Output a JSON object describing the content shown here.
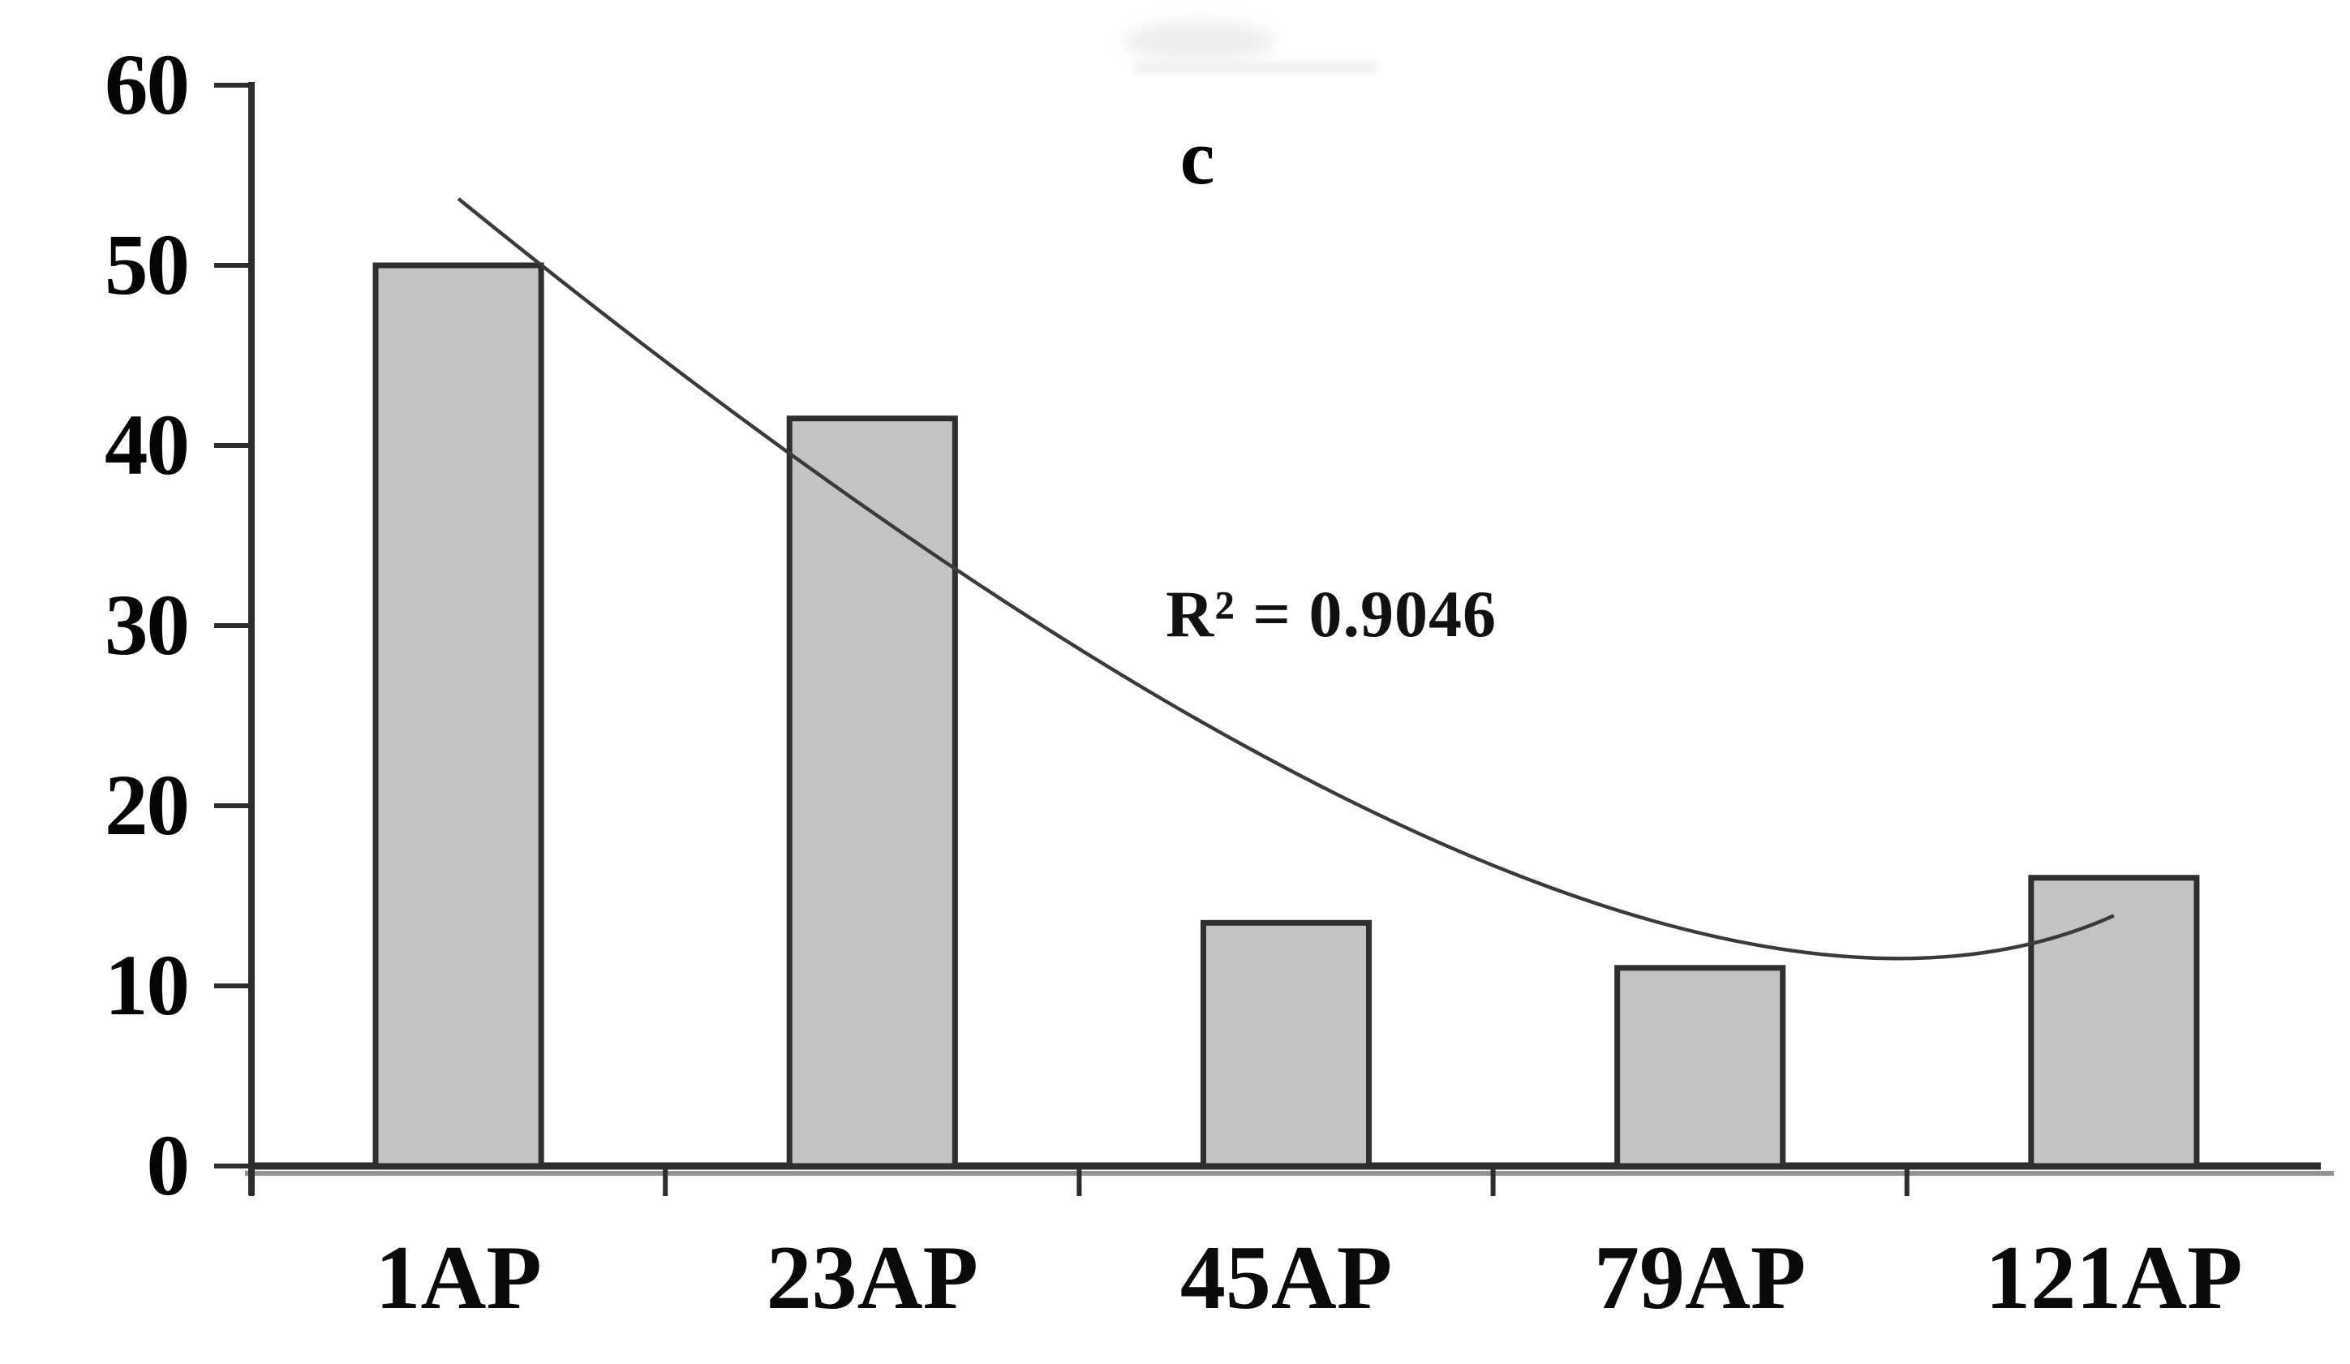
{
  "figure": {
    "panel_label": "c"
  },
  "chart_data": {
    "type": "bar",
    "title": "",
    "xlabel": "",
    "ylabel": "",
    "categories": [
      "1AP",
      "23AP",
      "45AP",
      "79AP",
      "121AP"
    ],
    "values": [
      50,
      41.5,
      13.5,
      11,
      16
    ],
    "ylim": [
      0,
      60
    ],
    "yticks": [
      60,
      50,
      40,
      30,
      20,
      10,
      0
    ],
    "grid": false,
    "legend": "none",
    "trendline": {
      "type": "polynomial",
      "label": "R² = 0.9046",
      "bezier_t_value": {
        "p0": [
          1.0,
          53.7
        ],
        "p1": [
          3.8,
          1.5
        ],
        "p2": [
          5.0,
          13.9
        ]
      }
    },
    "style": {
      "background": "#ffffff",
      "bar_fill": "#c3c3c3",
      "bar_border": "#2e2e2e",
      "axis_color": "#2d2d2d",
      "axis_shadow_color": "#929292",
      "trendline_color": "#3a3a3a",
      "text_color": "#000000"
    }
  }
}
